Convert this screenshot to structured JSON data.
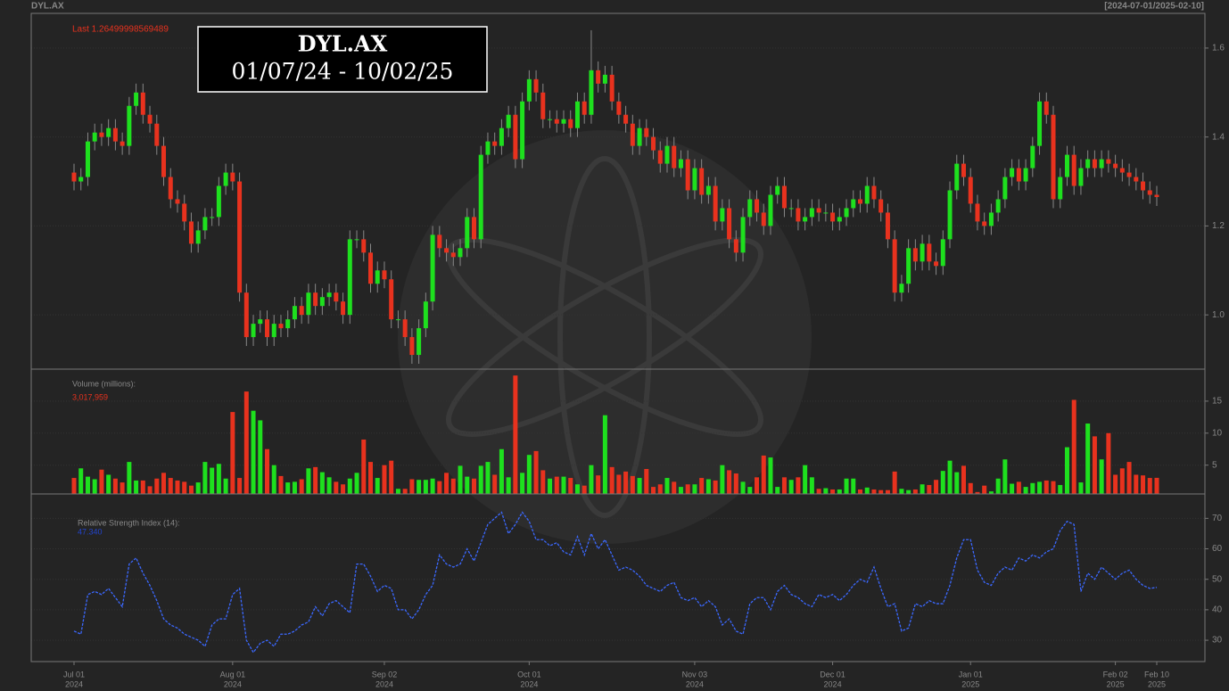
{
  "header": {
    "symbol": "DYL.AX",
    "range": "[2024-07-01/2025-02-10]"
  },
  "chart_data": {
    "type": "candlestick",
    "title": "DYL.AX",
    "subtitle": "01/07/24 - 10/02/25",
    "last_label": "Last 1.26499998569489",
    "up_color": "#1ee01e",
    "down_color": "#e8321e",
    "open": [
      1.32,
      1.3,
      1.31,
      1.39,
      1.41,
      1.4,
      1.42,
      1.39,
      1.38,
      1.47,
      1.5,
      1.45,
      1.43,
      1.38,
      1.31,
      1.26,
      1.25,
      1.21,
      1.16,
      1.19,
      1.22,
      1.22,
      1.29,
      1.32,
      1.3,
      1.05,
      0.95,
      0.98,
      0.99,
      0.95,
      0.98,
      0.97,
      0.99,
      1.02,
      1.0,
      1.05,
      1.02,
      1.04,
      1.05,
      1.03,
      1.0,
      1.17,
      1.17,
      1.14,
      1.07,
      1.1,
      1.08,
      0.99,
      0.99,
      0.95,
      0.91,
      0.97,
      1.03,
      1.18,
      1.15,
      1.14,
      1.13,
      1.15,
      1.22,
      1.17,
      1.36,
      1.39,
      1.38,
      1.42,
      1.45,
      1.35,
      1.48,
      1.53,
      1.5,
      1.44,
      1.44,
      1.43,
      1.44,
      1.42,
      1.48,
      1.45,
      1.55,
      1.52,
      1.54,
      1.48,
      1.45,
      1.43,
      1.38,
      1.42,
      1.4,
      1.37,
      1.34,
      1.38,
      1.33,
      1.35,
      1.28,
      1.33,
      1.27,
      1.29,
      1.21,
      1.24,
      1.17,
      1.14,
      1.22,
      1.26,
      1.23,
      1.2,
      1.27,
      1.29,
      1.24,
      1.24,
      1.21,
      1.22,
      1.24,
      1.23,
      1.23,
      1.21,
      1.22,
      1.24,
      1.26,
      1.25,
      1.29,
      1.26,
      1.23,
      1.17,
      1.05,
      1.07,
      1.15,
      1.12,
      1.16,
      1.12,
      1.11,
      1.17,
      1.28,
      1.34,
      1.31,
      1.25,
      1.21,
      1.2,
      1.23,
      1.26,
      1.31,
      1.33,
      1.3,
      1.33,
      1.38,
      1.48,
      1.45,
      1.26,
      1.31,
      1.36,
      1.29,
      1.33,
      1.35,
      1.33,
      1.35,
      1.34,
      1.33,
      1.32,
      1.31,
      1.3,
      1.28,
      1.27
    ],
    "high": [
      1.34,
      1.33,
      1.41,
      1.43,
      1.43,
      1.44,
      1.44,
      1.41,
      1.49,
      1.52,
      1.52,
      1.47,
      1.45,
      1.4,
      1.33,
      1.28,
      1.27,
      1.23,
      1.21,
      1.24,
      1.24,
      1.31,
      1.34,
      1.34,
      1.32,
      1.07,
      1.0,
      1.01,
      1.01,
      1.0,
      1.0,
      1.01,
      1.04,
      1.04,
      1.07,
      1.07,
      1.06,
      1.07,
      1.07,
      1.05,
      1.19,
      1.19,
      1.19,
      1.16,
      1.12,
      1.12,
      1.1,
      1.01,
      1.01,
      0.97,
      0.99,
      1.05,
      1.2,
      1.2,
      1.17,
      1.16,
      1.17,
      1.24,
      1.24,
      1.38,
      1.41,
      1.41,
      1.44,
      1.47,
      1.47,
      1.5,
      1.55,
      1.55,
      1.52,
      1.46,
      1.46,
      1.46,
      1.46,
      1.5,
      1.5,
      1.64,
      1.57,
      1.56,
      1.56,
      1.5,
      1.47,
      1.45,
      1.44,
      1.44,
      1.42,
      1.39,
      1.4,
      1.4,
      1.37,
      1.37,
      1.35,
      1.35,
      1.31,
      1.31,
      1.26,
      1.26,
      1.19,
      1.24,
      1.28,
      1.28,
      1.25,
      1.29,
      1.31,
      1.31,
      1.26,
      1.26,
      1.24,
      1.26,
      1.26,
      1.25,
      1.25,
      1.24,
      1.26,
      1.28,
      1.28,
      1.31,
      1.31,
      1.28,
      1.25,
      1.19,
      1.09,
      1.17,
      1.17,
      1.18,
      1.18,
      1.14,
      1.19,
      1.3,
      1.36,
      1.36,
      1.33,
      1.27,
      1.23,
      1.25,
      1.28,
      1.33,
      1.35,
      1.35,
      1.35,
      1.4,
      1.5,
      1.5,
      1.47,
      1.33,
      1.38,
      1.38,
      1.35,
      1.37,
      1.37,
      1.37,
      1.37,
      1.36,
      1.35,
      1.34,
      1.33,
      1.32,
      1.3,
      1.29
    ],
    "low": [
      1.28,
      1.28,
      1.29,
      1.37,
      1.38,
      1.38,
      1.37,
      1.36,
      1.36,
      1.45,
      1.43,
      1.41,
      1.36,
      1.29,
      1.24,
      1.23,
      1.19,
      1.14,
      1.14,
      1.17,
      1.2,
      1.2,
      1.27,
      1.28,
      1.03,
      0.93,
      0.93,
      0.96,
      0.93,
      0.93,
      0.95,
      0.95,
      0.97,
      0.98,
      0.98,
      1.0,
      1.0,
      1.02,
      1.01,
      0.98,
      0.98,
      1.15,
      1.12,
      1.05,
      1.05,
      1.06,
      0.97,
      0.97,
      0.93,
      0.89,
      0.89,
      0.95,
      1.01,
      1.13,
      1.12,
      1.11,
      1.11,
      1.13,
      1.15,
      1.15,
      1.34,
      1.36,
      1.36,
      1.4,
      1.33,
      1.33,
      1.46,
      1.48,
      1.42,
      1.42,
      1.41,
      1.41,
      1.4,
      1.4,
      1.43,
      1.43,
      1.5,
      1.5,
      1.46,
      1.43,
      1.41,
      1.36,
      1.36,
      1.38,
      1.35,
      1.32,
      1.32,
      1.31,
      1.31,
      1.26,
      1.26,
      1.25,
      1.25,
      1.19,
      1.19,
      1.15,
      1.12,
      1.12,
      1.2,
      1.21,
      1.18,
      1.18,
      1.25,
      1.22,
      1.22,
      1.19,
      1.19,
      1.2,
      1.21,
      1.21,
      1.19,
      1.19,
      1.2,
      1.22,
      1.23,
      1.23,
      1.24,
      1.21,
      1.15,
      1.03,
      1.03,
      1.05,
      1.1,
      1.1,
      1.1,
      1.09,
      1.09,
      1.15,
      1.26,
      1.29,
      1.23,
      1.19,
      1.18,
      1.18,
      1.21,
      1.24,
      1.29,
      1.28,
      1.28,
      1.31,
      1.36,
      1.43,
      1.24,
      1.24,
      1.29,
      1.27,
      1.27,
      1.31,
      1.31,
      1.31,
      1.32,
      1.31,
      1.3,
      1.29,
      1.28,
      1.26,
      1.25,
      1.245
    ],
    "close": [
      1.3,
      1.31,
      1.39,
      1.41,
      1.4,
      1.42,
      1.39,
      1.38,
      1.47,
      1.5,
      1.45,
      1.43,
      1.38,
      1.31,
      1.26,
      1.25,
      1.21,
      1.16,
      1.19,
      1.22,
      1.22,
      1.29,
      1.32,
      1.3,
      1.05,
      0.95,
      0.98,
      0.99,
      0.95,
      0.98,
      0.97,
      0.99,
      1.02,
      1.0,
      1.05,
      1.02,
      1.04,
      1.05,
      1.03,
      1.0,
      1.17,
      1.17,
      1.14,
      1.07,
      1.1,
      1.08,
      0.99,
      0.99,
      0.95,
      0.91,
      0.97,
      1.03,
      1.18,
      1.15,
      1.14,
      1.13,
      1.15,
      1.22,
      1.17,
      1.36,
      1.39,
      1.38,
      1.42,
      1.45,
      1.35,
      1.48,
      1.53,
      1.5,
      1.44,
      1.44,
      1.43,
      1.44,
      1.42,
      1.48,
      1.45,
      1.55,
      1.52,
      1.54,
      1.48,
      1.45,
      1.43,
      1.38,
      1.42,
      1.4,
      1.37,
      1.34,
      1.38,
      1.33,
      1.35,
      1.28,
      1.33,
      1.27,
      1.29,
      1.21,
      1.24,
      1.17,
      1.14,
      1.22,
      1.26,
      1.23,
      1.2,
      1.27,
      1.29,
      1.24,
      1.24,
      1.21,
      1.22,
      1.24,
      1.23,
      1.23,
      1.21,
      1.22,
      1.24,
      1.26,
      1.25,
      1.29,
      1.26,
      1.23,
      1.17,
      1.05,
      1.07,
      1.15,
      1.12,
      1.16,
      1.12,
      1.11,
      1.17,
      1.28,
      1.34,
      1.31,
      1.25,
      1.21,
      1.2,
      1.23,
      1.26,
      1.31,
      1.33,
      1.3,
      1.33,
      1.38,
      1.48,
      1.45,
      1.26,
      1.31,
      1.36,
      1.29,
      1.33,
      1.35,
      1.33,
      1.35,
      1.34,
      1.33,
      1.32,
      1.31,
      1.3,
      1.28,
      1.27,
      1.26499998569489
    ],
    "xticks": [
      {
        "value": 0,
        "label": "Jul 01",
        "year": "2024"
      },
      {
        "value": 23,
        "label": "Aug 01",
        "year": "2024"
      },
      {
        "value": 45,
        "label": "Sep 02",
        "year": "2024"
      },
      {
        "value": 66,
        "label": "Oct 01",
        "year": "2024"
      },
      {
        "value": 90,
        "label": "Nov 03",
        "year": "2024"
      },
      {
        "value": 110,
        "label": "Dec 01",
        "year": "2024"
      },
      {
        "value": 130,
        "label": "Jan 01",
        "year": "2025"
      },
      {
        "value": 151,
        "label": "Feb 02",
        "year": "2025"
      },
      {
        "value": 157,
        "label": "Feb 10",
        "year": "2025"
      }
    ],
    "ylim": [
      0.878,
      1.678
    ],
    "yticks": [
      {
        "value": 1.0,
        "label": "1.0"
      },
      {
        "value": 1.2,
        "label": "1.2"
      },
      {
        "value": 1.4,
        "label": "1.4"
      },
      {
        "value": 1.6,
        "label": "1.6"
      }
    ],
    "grid": true,
    "volume": {
      "label": "Volume (millions):",
      "last": "3,017,959",
      "ylim": [
        0.5,
        20
      ],
      "yticks": [
        5,
        10,
        15
      ],
      "values": [
        3.0,
        4.5,
        3.2,
        2.8,
        4.3,
        3.5,
        2.9,
        2.3,
        5.5,
        2.6,
        2.6,
        1.7,
        2.9,
        3.8,
        3.0,
        2.6,
        2.4,
        1.8,
        2.3,
        5.5,
        4.6,
        5.2,
        2.9,
        13.3,
        3.0,
        16.5,
        13.5,
        12.0,
        7.5,
        5.0,
        3.3,
        2.3,
        2.4,
        2.8,
        4.5,
        4.7,
        3.9,
        3.1,
        2.4,
        2.0,
        2.9,
        3.8,
        9.0,
        5.5,
        3.0,
        5.0,
        5.7,
        1.3,
        1.3,
        2.8,
        2.7,
        2.7,
        2.9,
        2.5,
        3.8,
        2.9,
        4.9,
        3.2,
        2.9,
        4.9,
        5.5,
        3.5,
        7.5,
        3.1,
        19.0,
        3.8,
        6.6,
        7.2,
        4.2,
        2.9,
        3.2,
        3.2,
        3.0,
        2.0,
        1.8,
        5.0,
        3.4,
        12.8,
        4.7,
        3.5,
        4.0,
        3.3,
        3.0,
        4.4,
        1.6,
        2.0,
        3.0,
        2.4,
        1.6,
        2.0,
        2.0,
        3.0,
        2.8,
        2.6,
        5.0,
        4.2,
        3.7,
        2.4,
        1.6,
        3.1,
        6.5,
        6.2,
        1.6,
        3.1,
        2.7,
        3.1,
        5.0,
        3.1,
        1.3,
        1.4,
        1.2,
        1.2,
        2.9,
        2.9,
        1.2,
        1.5,
        1.2,
        1.1,
        1.1,
        4.0,
        1.3,
        1.1,
        1.2,
        2.0,
        1.9,
        2.7,
        4.1,
        5.7,
        3.9,
        4.9,
        2.2,
        0.8,
        1.8,
        0.9,
        2.9,
        5.9,
        2.1,
        2.4,
        1.6,
        2.2,
        2.4,
        2.6,
        2.5,
        1.9,
        7.8,
        15.2,
        2.3,
        11.5,
        9.5,
        5.9,
        10.0,
        3.5,
        4.5,
        5.5,
        3.5,
        3.4,
        3.0,
        3.017959
      ]
    },
    "rsi": {
      "label": "Relative Strength Index (14):",
      "last": "47.340",
      "color": "#3b68ff",
      "ylim": [
        23,
        78
      ],
      "yticks": [
        30,
        40,
        50,
        60,
        70
      ],
      "values": [
        33,
        32,
        45,
        46,
        45,
        47,
        44,
        41,
        55,
        57,
        52,
        48,
        43,
        37,
        35,
        34,
        32,
        31,
        30,
        28,
        35,
        37,
        37,
        45,
        47,
        30,
        26,
        29,
        30,
        28,
        32,
        32,
        33,
        35,
        36,
        41,
        38,
        42,
        43,
        41,
        39,
        55,
        55,
        51,
        46,
        48,
        47,
        40,
        40,
        37,
        40,
        45,
        48,
        58,
        55,
        54,
        55,
        60,
        56,
        62,
        68,
        70,
        72,
        65,
        68,
        72,
        69,
        63,
        63,
        61,
        62,
        59,
        58,
        64,
        58,
        65,
        60,
        63,
        58,
        53,
        54,
        53,
        51,
        48,
        47,
        46,
        48,
        49,
        44,
        43,
        44,
        41,
        43,
        41,
        35,
        37,
        33,
        32,
        42,
        44,
        44,
        40,
        46,
        48,
        45,
        44,
        42,
        41,
        45,
        44,
        45,
        43,
        45,
        48,
        50,
        49,
        54,
        47,
        41,
        42,
        33,
        34,
        42,
        41,
        43,
        42,
        42,
        48,
        57,
        63,
        63,
        53,
        49,
        48,
        52,
        54,
        53,
        57,
        56,
        58,
        57,
        59,
        60,
        66,
        69,
        68,
        46,
        52,
        50,
        54,
        52,
        50,
        52,
        53,
        50,
        48,
        47,
        47.34
      ]
    }
  }
}
